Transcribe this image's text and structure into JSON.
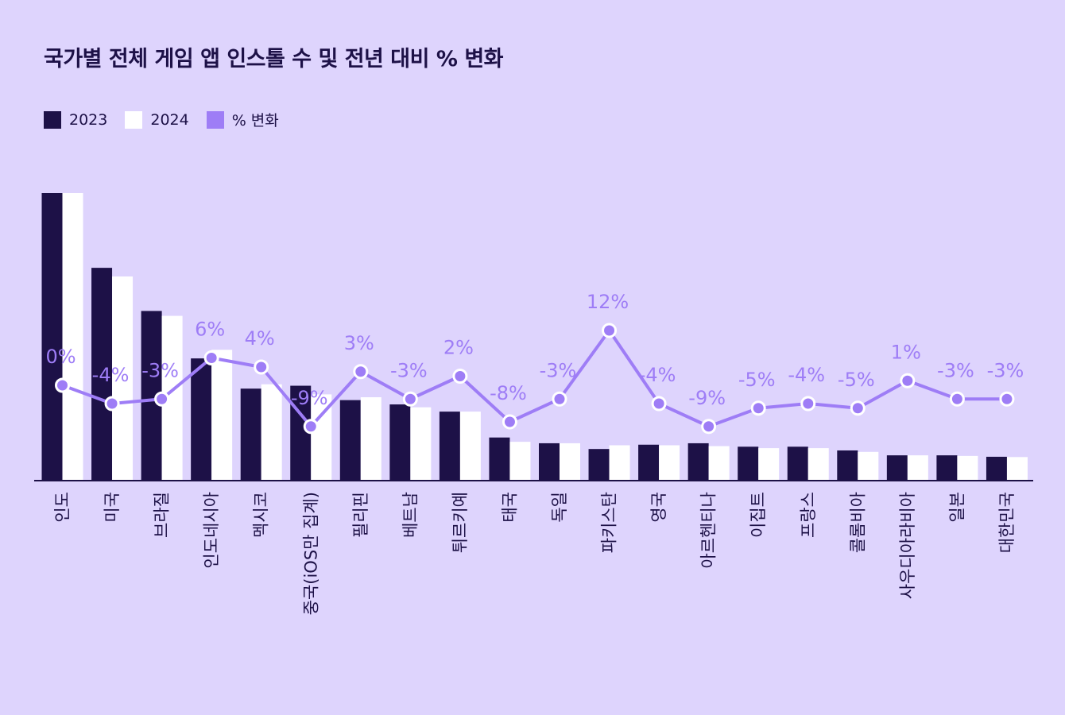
{
  "title": "국가별 전체 게임 앱 인스톨 수 및 전년 대비 % 변화",
  "legend": [
    {
      "label": "2023",
      "color": "#1d1147"
    },
    {
      "label": "2024",
      "color": "#ffffff"
    },
    {
      "label": "% 변화",
      "color": "#9e7df6"
    }
  ],
  "colors": {
    "background": "#ded4fd",
    "bar2023": "#1d1147",
    "bar2024": "#ffffff",
    "line": "#9e7df6",
    "axis": "#1d1147"
  },
  "chart_data": {
    "type": "bar",
    "title": "국가별 전체 게임 앱 인스톨 수 및 전년 대비 % 변화",
    "xlabel": "",
    "ylabel": "",
    "ylim": [
      0,
      100
    ],
    "y2lim": [
      -20,
      40
    ],
    "categories": [
      "인도",
      "미국",
      "브라질",
      "인도네시아",
      "멕시코",
      "중국(iOS만 집계)",
      "필리핀",
      "베트남",
      "튀르키예",
      "태국",
      "독일",
      "파키스탄",
      "영국",
      "아르헨티나",
      "이집트",
      "프랑스",
      "콜롬비아",
      "사우디아라비아",
      "일본",
      "대한민국"
    ],
    "series": [
      {
        "name": "2023",
        "type": "bar",
        "values": [
          100,
          74,
          59,
          42.5,
          32,
          33,
          28,
          26.5,
          24,
          15,
          13,
          11,
          12.5,
          13,
          11.8,
          11.8,
          10.5,
          8.8,
          8.8,
          8.3
        ]
      },
      {
        "name": "2024",
        "type": "bar",
        "values": [
          100,
          71,
          57.3,
          45.5,
          33.5,
          30,
          29,
          25.5,
          24,
          13.5,
          13,
          12.3,
          12.3,
          12,
          11.3,
          11.3,
          10,
          8.8,
          8.6,
          8.2
        ]
      },
      {
        "name": "% 변화",
        "type": "line",
        "values": [
          0,
          -4,
          -3,
          6,
          4,
          -9,
          3,
          -3,
          2,
          -8,
          -3,
          12,
          -4,
          -9,
          -5,
          -4,
          -5,
          1,
          -3,
          -3
        ],
        "labels": [
          "0%",
          "-4%",
          "-3%",
          "6%",
          "4%",
          "-9%",
          "3%",
          "-3%",
          "2%",
          "-8%",
          "-3%",
          "12%",
          "-4%",
          "-9%",
          "-5%",
          "-4%",
          "-5%",
          "1%",
          "-3%",
          "-3%"
        ]
      }
    ]
  }
}
